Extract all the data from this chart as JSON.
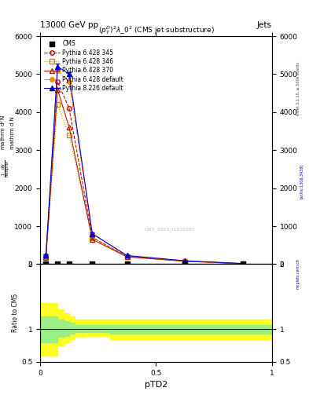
{
  "title_top": "13000 GeV pp",
  "title_right": "Jets",
  "plot_title": "$(p_T^D)^2\\lambda\\_0^2$ (CMS jet substructure)",
  "xlabel": "pTD2",
  "ylabel_ratio": "Ratio to CMS",
  "watermark": "CMS_2021_I1920187",
  "rivet_text": "Rivet 3.1.10, ≥ 500k events",
  "arxiv_text": "[arXiv:1306.3438]",
  "mcplots_text": "mcplots.cern.ch",
  "series": [
    {
      "label": "CMS",
      "color": "#000000",
      "marker": "s",
      "markersize": 4,
      "linestyle": "none",
      "x": [
        0.025,
        0.075,
        0.125,
        0.225,
        0.375,
        0.625,
        0.875
      ],
      "y": [
        0,
        0,
        0,
        0,
        0,
        0,
        0
      ],
      "yerr": [
        0,
        0,
        0,
        0,
        0,
        0,
        0
      ],
      "filled": true
    },
    {
      "label": "Pythia 6.428 345",
      "color": "#cc0000",
      "marker": "o",
      "markersize": 4,
      "linestyle": "--",
      "x": [
        0.025,
        0.075,
        0.125,
        0.225,
        0.375,
        0.625,
        0.875
      ],
      "y": [
        220,
        4800,
        4100,
        700,
        200,
        80,
        10
      ],
      "filled": false
    },
    {
      "label": "Pythia 6.428 346",
      "color": "#cc8800",
      "marker": "s",
      "markersize": 4,
      "linestyle": ":",
      "x": [
        0.025,
        0.075,
        0.125,
        0.225,
        0.375,
        0.625,
        0.875
      ],
      "y": [
        200,
        4200,
        3400,
        700,
        200,
        80,
        12
      ],
      "filled": false
    },
    {
      "label": "Pythia 6.428 370",
      "color": "#aa2200",
      "marker": "^",
      "markersize": 4,
      "linestyle": "-",
      "x": [
        0.025,
        0.075,
        0.125,
        0.225,
        0.375,
        0.625,
        0.875
      ],
      "y": [
        180,
        4600,
        3600,
        650,
        190,
        75,
        10
      ],
      "filled": false
    },
    {
      "label": "Pythia 6.428 default",
      "color": "#ff8800",
      "marker": "o",
      "markersize": 4,
      "linestyle": "-.",
      "x": [
        0.025,
        0.075,
        0.125,
        0.225,
        0.375,
        0.625,
        0.875
      ],
      "y": [
        230,
        5100,
        4800,
        800,
        220,
        85,
        12
      ],
      "filled": true
    },
    {
      "label": "Pythia 8.226 default",
      "color": "#0000cc",
      "marker": "^",
      "markersize": 4,
      "linestyle": "-",
      "x": [
        0.025,
        0.075,
        0.125,
        0.225,
        0.375,
        0.625,
        0.875
      ],
      "y": [
        230,
        5200,
        5000,
        800,
        225,
        88,
        15
      ],
      "yerr": [
        20,
        70,
        60,
        30,
        15,
        8,
        3
      ],
      "filled": true
    }
  ],
  "ratio_bands": {
    "yellow_x": [
      0.0,
      0.05,
      0.075,
      0.1,
      0.125,
      0.15,
      0.175,
      0.2,
      0.3,
      1.0
    ],
    "yellow_lo": [
      0.6,
      0.6,
      0.75,
      0.8,
      0.85,
      0.88,
      0.88,
      0.9,
      0.85,
      0.85
    ],
    "yellow_hi": [
      1.4,
      1.4,
      1.3,
      1.25,
      1.2,
      1.15,
      1.15,
      1.15,
      1.15,
      1.15
    ],
    "green_x": [
      0.0,
      0.05,
      0.075,
      0.1,
      0.125,
      0.15,
      0.175,
      0.2,
      0.3,
      1.0
    ],
    "green_lo": [
      0.8,
      0.8,
      0.88,
      0.9,
      0.93,
      0.95,
      0.95,
      0.96,
      0.93,
      0.93
    ],
    "green_hi": [
      1.2,
      1.2,
      1.15,
      1.12,
      1.1,
      1.07,
      1.07,
      1.06,
      1.07,
      1.07
    ]
  },
  "xlim": [
    0.0,
    1.0
  ],
  "ylim": [
    0,
    6000
  ],
  "yticks": [
    0,
    1000,
    2000,
    3000,
    4000,
    5000,
    6000
  ],
  "ratio_ylim": [
    0.5,
    2.0
  ],
  "ratio_yticks": [
    0.5,
    1.0,
    2.0
  ],
  "background_color": "#ffffff"
}
